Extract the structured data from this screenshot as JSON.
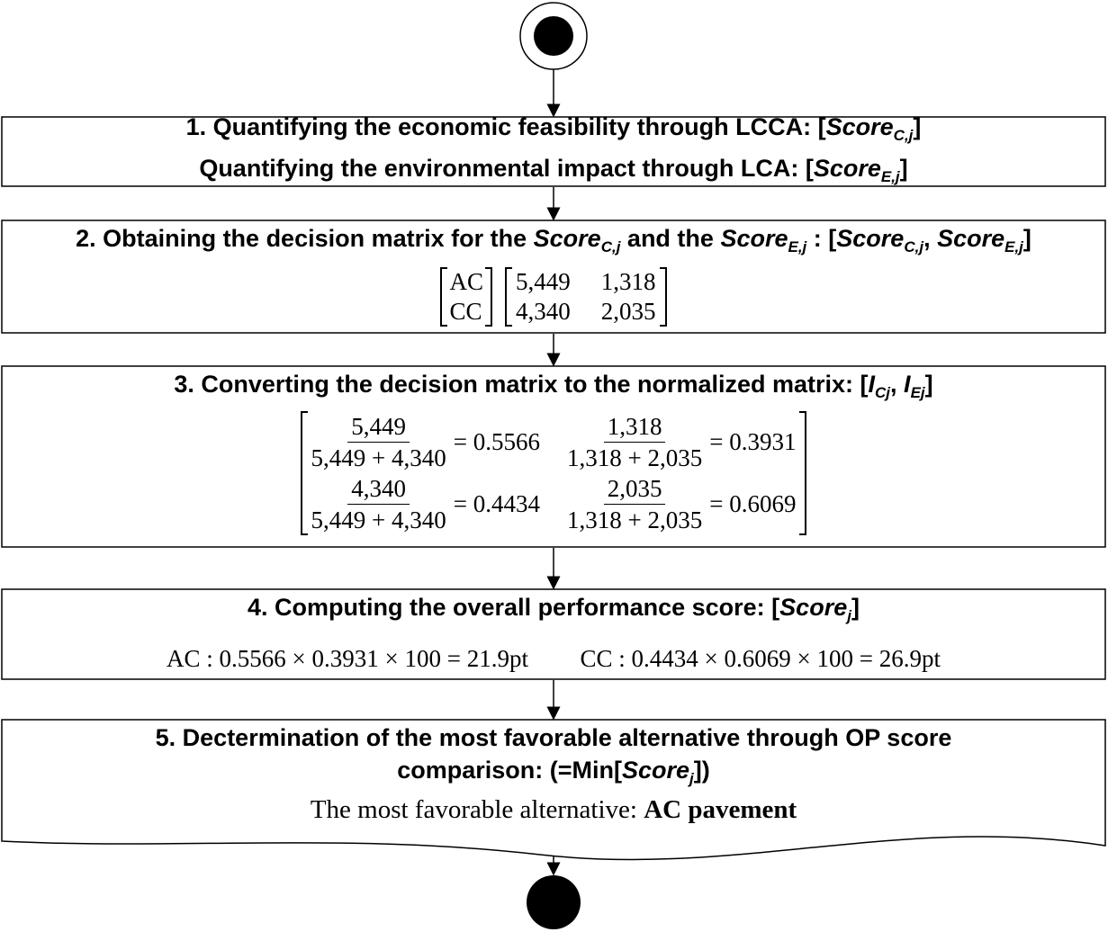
{
  "steps": [
    {
      "lines": [
        [
          "1. Quantifying the economic feasibility through LCCA: [",
          "Score",
          "C,j",
          "]"
        ],
        [
          "Quantifying the environmental impact through LCA: [",
          "Score",
          "E,j",
          "]"
        ]
      ]
    },
    {
      "lines": [
        [
          "2. Obtaining the decision matrix for the ",
          "Score",
          "C,j",
          " and the ",
          "Score",
          "E,j",
          " : [",
          "Score",
          "C,j",
          ", ",
          "Score",
          "E,j",
          "]"
        ]
      ],
      "matrix": {
        "rows": [
          "AC",
          "CC"
        ],
        "values": [
          [
            "5,449",
            "1,318"
          ],
          [
            "4,340",
            "2,035"
          ]
        ]
      }
    },
    {
      "lines": [
        [
          "3. Converting the decision matrix to the normalized matrix: [",
          "I",
          "Cj",
          ", ",
          "I",
          "Ej",
          "]"
        ]
      ],
      "fractions": [
        [
          {
            "num": "5,449",
            "den": "5,449 + 4,340",
            "result": "= 0.5566"
          },
          {
            "num": "1,318",
            "den": "1,318 + 2,035",
            "result": "= 0.3931"
          }
        ],
        [
          {
            "num": "4,340",
            "den": "5,449 + 4,340",
            "result": "= 0.4434"
          },
          {
            "num": "2,035",
            "den": "1,318 + 2,035",
            "result": "= 0.6069"
          }
        ]
      ]
    },
    {
      "lines": [
        [
          "4. Computing the overall performance score: [",
          "Score",
          "j",
          "]"
        ]
      ],
      "formulas": [
        "AC : 0.5566 × 0.3931 × 100 = 21.9pt",
        "CC : 0.4434 × 0.6069 × 100 = 26.9pt"
      ]
    },
    {
      "lines": [
        [
          "5. Dectermination of the most favorable alternative through OP score"
        ],
        [
          "comparison: (=Min[",
          "Score",
          "j",
          "])"
        ]
      ],
      "conclusion": [
        "The most favorable alternative: ",
        "AC pavement"
      ]
    }
  ]
}
